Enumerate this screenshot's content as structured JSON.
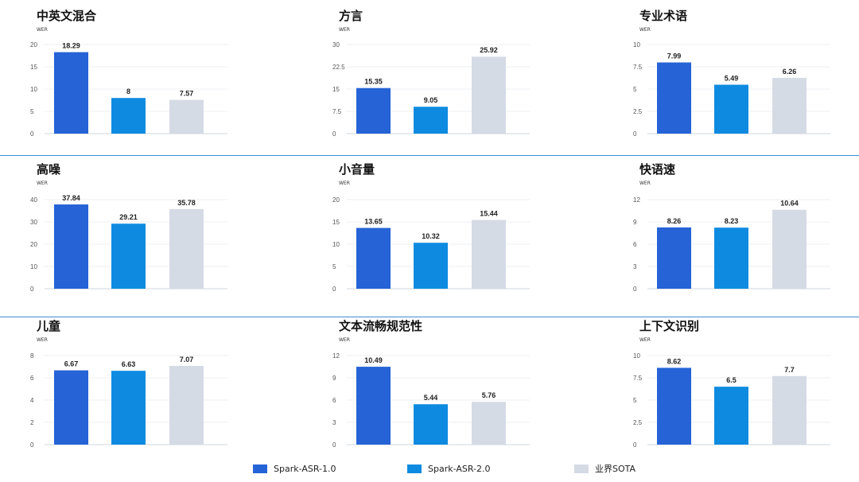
{
  "colors": {
    "s1": "#2563d6",
    "s2": "#0e8be0",
    "s3": "#d5dbe5",
    "divider": "#3b8fd9"
  },
  "legend": [
    "Spark-ASR-1.0",
    "Spark-ASR-2.0",
    "业界SOTA"
  ],
  "chart_data": [
    {
      "type": "bar",
      "title": "中英文混合",
      "ylabel": "WER",
      "ylim": [
        0,
        20
      ],
      "yticks": [
        "0",
        "5",
        "10",
        "15",
        "20"
      ],
      "series": [
        "Spark-ASR-1.0",
        "Spark-ASR-2.0",
        "业界SOTA"
      ],
      "values": [
        18.29,
        8,
        7.57
      ],
      "labels": [
        "18.29",
        "8",
        "7.57"
      ]
    },
    {
      "type": "bar",
      "title": "方言",
      "ylabel": "WER",
      "ylim": [
        0,
        30
      ],
      "yticks": [
        "0",
        "7.5",
        "15",
        "22.5",
        "30"
      ],
      "series": [
        "Spark-ASR-1.0",
        "Spark-ASR-2.0",
        "业界SOTA"
      ],
      "values": [
        15.35,
        9.05,
        25.92
      ],
      "labels": [
        "15.35",
        "9.05",
        "25.92"
      ]
    },
    {
      "type": "bar",
      "title": "专业术语",
      "ylabel": "WER",
      "ylim": [
        0,
        10
      ],
      "yticks": [
        "0",
        "2.5",
        "5",
        "7.5",
        "10"
      ],
      "series": [
        "Spark-ASR-1.0",
        "Spark-ASR-2.0",
        "业界SOTA"
      ],
      "values": [
        7.99,
        5.49,
        6.26
      ],
      "labels": [
        "7.99",
        "5.49",
        "6.26"
      ]
    },
    {
      "type": "bar",
      "title": "高噪",
      "ylabel": "WER",
      "ylim": [
        0,
        40
      ],
      "yticks": [
        "0",
        "10",
        "20",
        "30",
        "40"
      ],
      "series": [
        "Spark-ASR-1.0",
        "Spark-ASR-2.0",
        "业界SOTA"
      ],
      "values": [
        37.84,
        29.21,
        35.78
      ],
      "labels": [
        "37.84",
        "29.21",
        "35.78"
      ]
    },
    {
      "type": "bar",
      "title": "小音量",
      "ylabel": "WER",
      "ylim": [
        0,
        20
      ],
      "yticks": [
        "0",
        "5",
        "10",
        "15",
        "20"
      ],
      "series": [
        "Spark-ASR-1.0",
        "Spark-ASR-2.0",
        "业界SOTA"
      ],
      "values": [
        13.65,
        10.32,
        15.44
      ],
      "labels": [
        "13.65",
        "10.32",
        "15.44"
      ]
    },
    {
      "type": "bar",
      "title": "快语速",
      "ylabel": "WER",
      "ylim": [
        0,
        12
      ],
      "yticks": [
        "0",
        "3",
        "6",
        "9",
        "12"
      ],
      "series": [
        "Spark-ASR-1.0",
        "Spark-ASR-2.0",
        "业界SOTA"
      ],
      "values": [
        8.26,
        8.23,
        10.64
      ],
      "labels": [
        "8.26",
        "8.23",
        "10.64"
      ]
    },
    {
      "type": "bar",
      "title": "儿童",
      "ylabel": "WER",
      "ylim": [
        0,
        8
      ],
      "yticks": [
        "0",
        "2",
        "4",
        "6",
        "8"
      ],
      "series": [
        "Spark-ASR-1.0",
        "Spark-ASR-2.0",
        "业界SOTA"
      ],
      "values": [
        6.67,
        6.63,
        7.07
      ],
      "labels": [
        "6.67",
        "6.63",
        "7.07"
      ]
    },
    {
      "type": "bar",
      "title": "文本流畅规范性",
      "ylabel": "WER",
      "ylim": [
        0,
        12
      ],
      "yticks": [
        "0",
        "3",
        "6",
        "9",
        "12"
      ],
      "series": [
        "Spark-ASR-1.0",
        "Spark-ASR-2.0",
        "业界SOTA"
      ],
      "values": [
        10.49,
        5.44,
        5.76
      ],
      "labels": [
        "10.49",
        "5.44",
        "5.76"
      ]
    },
    {
      "type": "bar",
      "title": "上下文识别",
      "ylabel": "WER",
      "ylim": [
        0,
        10
      ],
      "yticks": [
        "0",
        "2.5",
        "5",
        "7.5",
        "10"
      ],
      "series": [
        "Spark-ASR-1.0",
        "Spark-ASR-2.0",
        "业界SOTA"
      ],
      "values": [
        8.62,
        6.5,
        7.7
      ],
      "labels": [
        "8.62",
        "6.5",
        "7.7"
      ]
    }
  ]
}
